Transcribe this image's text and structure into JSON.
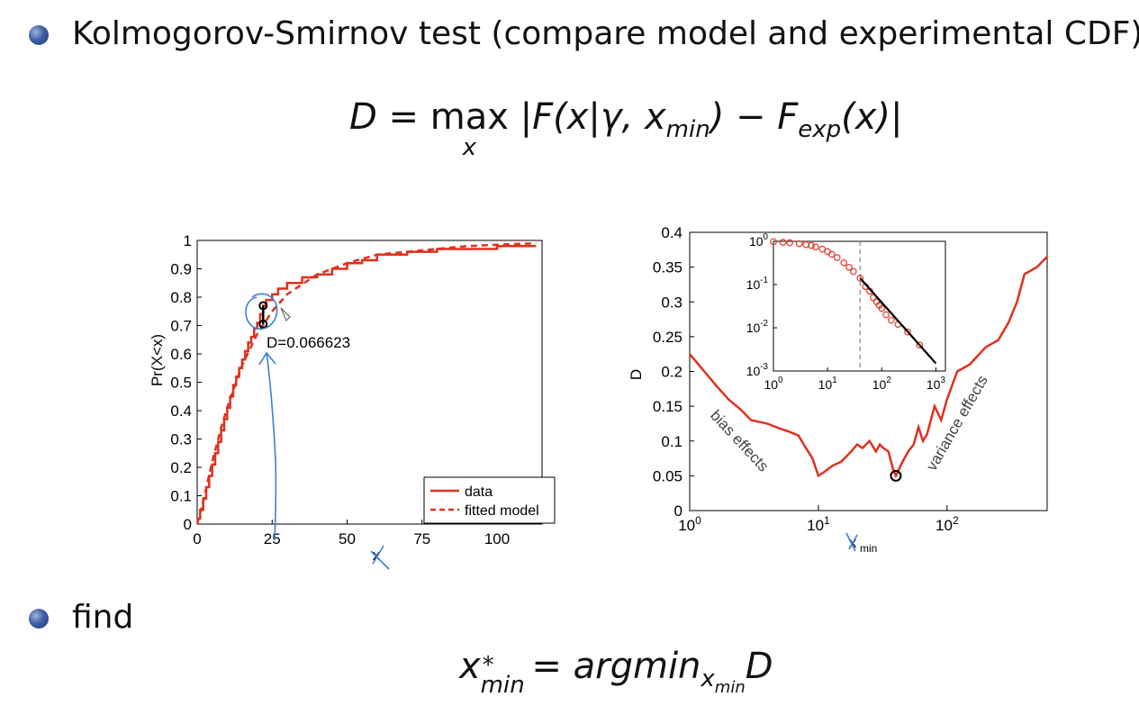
{
  "slide": {
    "bullet1": "Kolmogorov-Smirnov test (compare model and experimental CDF)",
    "bullet2": "find",
    "formula1": {
      "lhs": "D",
      "eq": "=",
      "op": "max",
      "op_under": "x",
      "body_a": "|F(x|γ, x",
      "body_a_sub": "min",
      "body_b": ") − F",
      "body_b_sub": "exp",
      "body_c": "(x)|"
    },
    "formula2": {
      "lhs": "x",
      "lhs_sup": "*",
      "lhs_sub": "min",
      "eq": "=",
      "rhs": "argmin",
      "rhs_sub": "x",
      "rhs_subsub": "min",
      "rhs_tail": "D"
    }
  },
  "colors": {
    "series_red": "#e0301e",
    "ink_blue": "#3b7fd6",
    "axis": "#000000"
  },
  "chart_data": [
    {
      "type": "line",
      "ylabel": "Pr(X<x)",
      "xlabel": "x",
      "xlim": [
        0,
        115
      ],
      "ylim": [
        0,
        1
      ],
      "x_ticks": [
        "0",
        "25",
        "50",
        "75",
        "100"
      ],
      "y_ticks": [
        "0",
        "0.1",
        "0.2",
        "0.3",
        "0.4",
        "0.5",
        "0.6",
        "0.7",
        "0.8",
        "0.9",
        "1"
      ],
      "annotation": "D=0.066623",
      "legend": {
        "position": "bottom-right",
        "entries": [
          "data",
          "fitted model"
        ]
      },
      "series": [
        {
          "name": "data",
          "style": "solid-step",
          "x": [
            0,
            1,
            2,
            3,
            4,
            5,
            6,
            7,
            8,
            9,
            10,
            11,
            12,
            13,
            14,
            15,
            16,
            17,
            18,
            19,
            20,
            21,
            22,
            23,
            25,
            27,
            30,
            35,
            40,
            45,
            50,
            55,
            60,
            70,
            80,
            90,
            100,
            113
          ],
          "y": [
            0.02,
            0.05,
            0.09,
            0.13,
            0.17,
            0.21,
            0.25,
            0.29,
            0.33,
            0.37,
            0.41,
            0.45,
            0.49,
            0.52,
            0.55,
            0.58,
            0.61,
            0.64,
            0.66,
            0.69,
            0.71,
            0.74,
            0.77,
            0.79,
            0.81,
            0.83,
            0.85,
            0.87,
            0.88,
            0.9,
            0.92,
            0.93,
            0.95,
            0.96,
            0.97,
            0.97,
            0.98,
            0.98
          ]
        },
        {
          "name": "fitted model",
          "style": "dashed",
          "x": [
            0,
            2,
            5,
            8,
            10,
            15,
            20,
            25,
            30,
            40,
            50,
            60,
            70,
            80,
            90,
            100,
            113
          ],
          "y": [
            0.0,
            0.08,
            0.22,
            0.34,
            0.41,
            0.56,
            0.67,
            0.75,
            0.81,
            0.88,
            0.92,
            0.95,
            0.96,
            0.97,
            0.98,
            0.985,
            0.99
          ]
        }
      ]
    },
    {
      "type": "line",
      "ylabel": "D",
      "xlabel": "x",
      "xlabel_sub": "min",
      "x_scale": "log",
      "xlim": [
        1,
        600
      ],
      "ylim": [
        0,
        0.4
      ],
      "x_ticks": [
        "10^0",
        "10^1",
        "10^2"
      ],
      "y_ticks": [
        "0",
        "0.05",
        "0.1",
        "0.15",
        "0.2",
        "0.25",
        "0.3",
        "0.35",
        "0.4"
      ],
      "annotations": [
        "bias effects",
        "variance effects"
      ],
      "series": [
        {
          "name": "D",
          "x": [
            1,
            1.3,
            1.6,
            2,
            2.5,
            3,
            4,
            5,
            6,
            7,
            8,
            9,
            10,
            11,
            13,
            15,
            18,
            20,
            22,
            25,
            28,
            30,
            32,
            35,
            38,
            40,
            45,
            50,
            55,
            60,
            65,
            70,
            80,
            90,
            100,
            120,
            150,
            200,
            250,
            300,
            350,
            400,
            500,
            600
          ],
          "y": [
            0.225,
            0.2,
            0.18,
            0.16,
            0.145,
            0.13,
            0.125,
            0.118,
            0.113,
            0.108,
            0.09,
            0.075,
            0.05,
            0.055,
            0.065,
            0.07,
            0.085,
            0.095,
            0.09,
            0.1,
            0.085,
            0.095,
            0.09,
            0.085,
            0.06,
            0.05,
            0.07,
            0.085,
            0.095,
            0.12,
            0.1,
            0.11,
            0.15,
            0.13,
            0.16,
            0.2,
            0.21,
            0.235,
            0.245,
            0.27,
            0.3,
            0.34,
            0.35,
            0.365
          ]
        }
      ],
      "min_marker": {
        "x": 40,
        "y": 0.05
      },
      "inset": {
        "type": "scatter",
        "x_scale": "log",
        "y_scale": "log",
        "xlim": [
          1,
          1500
        ],
        "ylim": [
          0.001,
          1
        ],
        "x_ticks": [
          "10^0",
          "10^1",
          "10^2",
          "10^3"
        ],
        "y_ticks": [
          "10^-3",
          "10^-2",
          "10^-1",
          "10^0"
        ],
        "xmin_line": 40,
        "points": {
          "x": [
            1,
            1.5,
            2,
            3,
            4,
            5,
            6,
            8,
            10,
            12,
            15,
            20,
            25,
            30,
            40,
            50,
            60,
            70,
            80,
            90,
            100,
            120,
            150,
            200,
            300,
            500
          ],
          "y": [
            0.98,
            0.95,
            0.93,
            0.88,
            0.84,
            0.8,
            0.74,
            0.66,
            0.58,
            0.5,
            0.42,
            0.32,
            0.25,
            0.2,
            0.14,
            0.09,
            0.07,
            0.05,
            0.04,
            0.033,
            0.028,
            0.02,
            0.015,
            0.012,
            0.008,
            0.004
          ]
        },
        "fit": {
          "x": [
            40,
            1000
          ],
          "y": [
            0.14,
            0.0015
          ]
        }
      }
    }
  ]
}
